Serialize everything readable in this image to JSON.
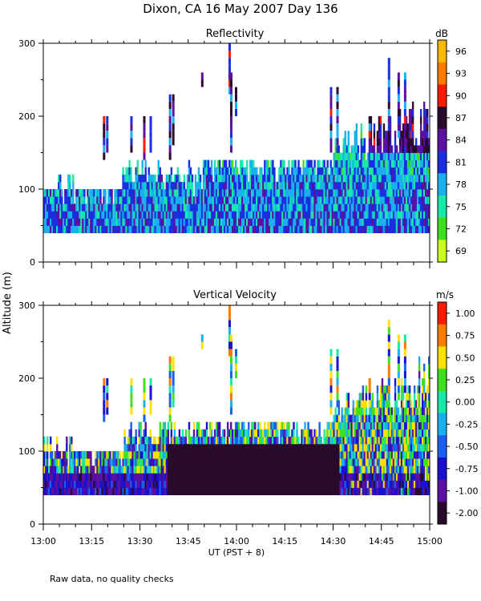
{
  "title": "Dixon, CA 16 May 2007  Day 136",
  "y_axis_label": "Altitude (m)",
  "x_axis_label": "UT  (PST + 8)",
  "footnote": "Raw data, no quality checks",
  "x_ticks": [
    "13:00",
    "13:15",
    "13:30",
    "13:45",
    "14:00",
    "14:15",
    "14:30",
    "14:45",
    "15:00"
  ],
  "chart_data": [
    {
      "type": "heatmap",
      "title": "Reflectivity",
      "xlabel": "UT  (PST + 8)",
      "ylabel": "Altitude (m)",
      "xlim": [
        "13:00",
        "15:00"
      ],
      "ylim": [
        0,
        300
      ],
      "y_ticks": [
        0,
        100,
        200,
        300
      ],
      "colorbar": {
        "unit": "dB",
        "labels": [
          "96",
          "93",
          "90",
          "87",
          "84",
          "81",
          "78",
          "75",
          "72",
          "69"
        ],
        "colors": [
          "#ffb800",
          "#ff7a00",
          "#ff1a00",
          "#2a0a2a",
          "#5a10a0",
          "#1a2ee0",
          "#1ab0f0",
          "#1ae8a8",
          "#40e020",
          "#c8ff20"
        ]
      },
      "echo_base_m": 40,
      "notes": "Near-surface echoes 40-100 m throughout; tops rising to ~240-260 m after 14:30"
    },
    {
      "type": "heatmap",
      "title": "Vertical Velocity",
      "xlabel": "UT  (PST + 8)",
      "ylabel": "Altitude (m)",
      "xlim": [
        "13:00",
        "15:00"
      ],
      "ylim": [
        0,
        300
      ],
      "y_ticks": [
        0,
        100,
        200,
        300
      ],
      "colorbar": {
        "unit": "m/s",
        "labels": [
          "1.00",
          "0.75",
          "0.50",
          "0.25",
          "0.00",
          "-0.25",
          "-0.50",
          "-0.75",
          "-1.00",
          "-2.00"
        ],
        "colors": [
          "#ff1a00",
          "#ff7a00",
          "#ffe000",
          "#40e020",
          "#1ae8a8",
          "#1ab0f0",
          "#1a60f0",
          "#1a10d0",
          "#5a10a0",
          "#2a0a2a"
        ]
      },
      "echo_base_m": 40,
      "notes": "Strong downward motion (-1 to -2 m/s) near 40-100 m between 13:45 and 14:30"
    }
  ]
}
